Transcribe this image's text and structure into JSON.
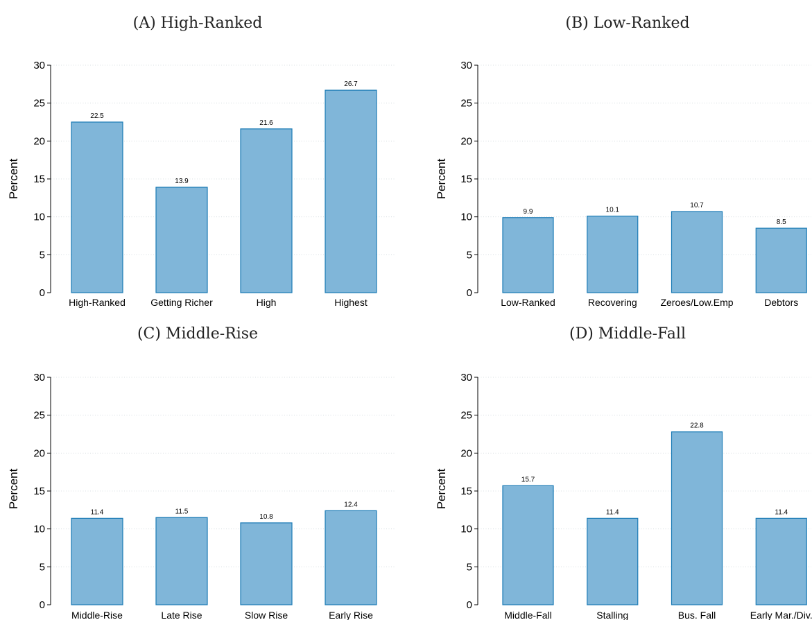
{
  "chart_data": [
    {
      "type": "bar",
      "title": "(A) High-Ranked",
      "ylabel": "Percent",
      "ylim": [
        0,
        30
      ],
      "yticks": [
        0,
        5,
        10,
        15,
        20,
        25,
        30
      ],
      "grid": true,
      "categories": [
        "High-Ranked",
        "Getting Richer",
        "High",
        "Highest"
      ],
      "values": [
        22.5,
        13.9,
        21.6,
        26.7
      ],
      "labels": [
        "22.5",
        "13.9",
        "21.6",
        "26.7"
      ]
    },
    {
      "type": "bar",
      "title": "(B) Low-Ranked",
      "ylabel": "Percent",
      "ylim": [
        0,
        30
      ],
      "yticks": [
        0,
        5,
        10,
        15,
        20,
        25,
        30
      ],
      "grid": true,
      "categories": [
        "Low-Ranked",
        "Recovering",
        "Zeroes/Low.Emp",
        "Debtors"
      ],
      "values": [
        9.9,
        10.1,
        10.7,
        8.5
      ],
      "labels": [
        "9.9",
        "10.1",
        "10.7",
        "8.5"
      ]
    },
    {
      "type": "bar",
      "title": "(C) Middle-Rise",
      "ylabel": "Percent",
      "ylim": [
        0,
        30
      ],
      "yticks": [
        0,
        5,
        10,
        15,
        20,
        25,
        30
      ],
      "grid": true,
      "categories": [
        "Middle-Rise",
        "Late Rise",
        "Slow Rise",
        "Early Rise"
      ],
      "values": [
        11.4,
        11.5,
        10.8,
        12.4
      ],
      "labels": [
        "11.4",
        "11.5",
        "10.8",
        "12.4"
      ]
    },
    {
      "type": "bar",
      "title": "(D) Middle-Fall",
      "ylabel": "Percent",
      "ylim": [
        0,
        30
      ],
      "yticks": [
        0,
        5,
        10,
        15,
        20,
        25,
        30
      ],
      "grid": true,
      "categories": [
        "Middle-Fall",
        "Stalling",
        "Bus. Fall",
        "Early Mar./Div."
      ],
      "values": [
        15.7,
        11.4,
        22.8,
        11.4
      ],
      "labels": [
        "15.7",
        "11.4",
        "22.8",
        "11.4"
      ]
    }
  ],
  "colors": {
    "bar_fill": "#80b6d9",
    "bar_stroke": "#1a7ab5",
    "grid": "#cfd8dc"
  }
}
